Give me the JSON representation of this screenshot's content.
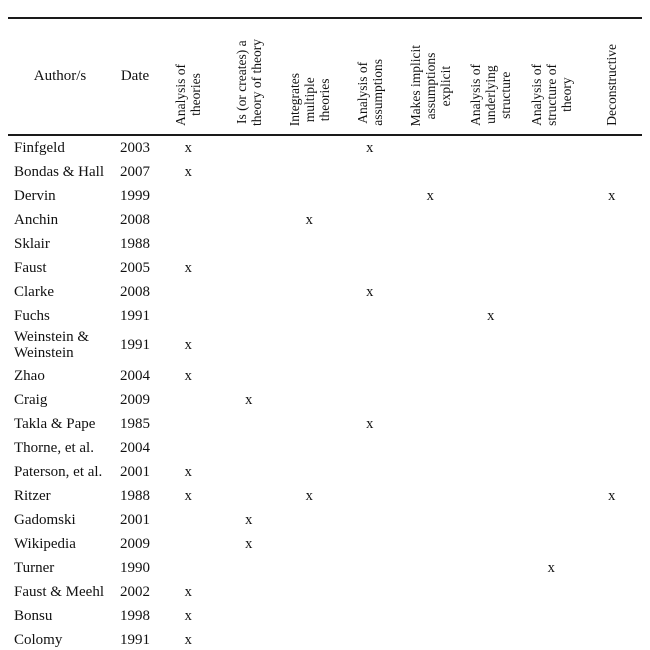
{
  "table": {
    "mark": "x",
    "header": {
      "author": "Author/s",
      "date": "Date",
      "criteria": [
        "Analysis of\ntheories",
        "Is (or creates) a\ntheory of theory",
        "Integrates\nmultiple\ntheories",
        "Analysis of\nassumptions",
        "Makes implicit\nassumptions\nexplicit",
        "Analysis of\nunderlying\nstructure",
        "Analysis of\nstructure of\ntheory",
        "Deconstructive"
      ]
    },
    "rows": [
      {
        "author": "Finfgeld",
        "date": "2003",
        "marks": [
          1,
          0,
          0,
          1,
          0,
          0,
          0,
          0
        ]
      },
      {
        "author": "Bondas & Hall",
        "date": "2007",
        "marks": [
          1,
          0,
          0,
          0,
          0,
          0,
          0,
          0
        ]
      },
      {
        "author": "Dervin",
        "date": "1999",
        "marks": [
          0,
          0,
          0,
          0,
          1,
          0,
          0,
          1
        ]
      },
      {
        "author": "Anchin",
        "date": "2008",
        "marks": [
          0,
          0,
          1,
          0,
          0,
          0,
          0,
          0
        ]
      },
      {
        "author": "Sklair",
        "date": "1988",
        "marks": [
          0,
          0,
          0,
          0,
          0,
          0,
          0,
          0
        ]
      },
      {
        "author": "Faust",
        "date": "2005",
        "marks": [
          1,
          0,
          0,
          0,
          0,
          0,
          0,
          0
        ]
      },
      {
        "author": "Clarke",
        "date": "2008",
        "marks": [
          0,
          0,
          0,
          1,
          0,
          0,
          0,
          0
        ]
      },
      {
        "author": "Fuchs",
        "date": "1991",
        "marks": [
          0,
          0,
          0,
          0,
          0,
          1,
          0,
          0
        ]
      },
      {
        "author": "Weinstein & Weinstein",
        "date": "1991",
        "marks": [
          1,
          0,
          0,
          0,
          0,
          0,
          0,
          0
        ],
        "tall": true
      },
      {
        "author": "Zhao",
        "date": "2004",
        "marks": [
          1,
          0,
          0,
          0,
          0,
          0,
          0,
          0
        ]
      },
      {
        "author": "Craig",
        "date": "2009",
        "marks": [
          0,
          1,
          0,
          0,
          0,
          0,
          0,
          0
        ]
      },
      {
        "author": "Takla & Pape",
        "date": "1985",
        "marks": [
          0,
          0,
          0,
          1,
          0,
          0,
          0,
          0
        ]
      },
      {
        "author": "Thorne, et al.",
        "date": "2004",
        "marks": [
          0,
          0,
          0,
          0,
          0,
          0,
          0,
          0
        ]
      },
      {
        "author": "Paterson, et al.",
        "date": "2001",
        "marks": [
          1,
          0,
          0,
          0,
          0,
          0,
          0,
          0
        ]
      },
      {
        "author": "Ritzer",
        "date": "1988",
        "marks": [
          1,
          0,
          1,
          0,
          0,
          0,
          0,
          1
        ]
      },
      {
        "author": "Gadomski",
        "date": "2001",
        "marks": [
          0,
          1,
          0,
          0,
          0,
          0,
          0,
          0
        ]
      },
      {
        "author": "Wikipedia",
        "date": "2009",
        "marks": [
          0,
          1,
          0,
          0,
          0,
          0,
          0,
          0
        ]
      },
      {
        "author": "Turner",
        "date": "1990",
        "marks": [
          0,
          0,
          0,
          0,
          0,
          0,
          1,
          0
        ]
      },
      {
        "author": "Faust & Meehl",
        "date": "2002",
        "marks": [
          1,
          0,
          0,
          0,
          0,
          0,
          0,
          0
        ]
      },
      {
        "author": "Bonsu",
        "date": "1998",
        "marks": [
          1,
          0,
          0,
          0,
          0,
          0,
          0,
          0
        ]
      },
      {
        "author": "Colomy",
        "date": "1991",
        "marks": [
          1,
          0,
          0,
          0,
          0,
          0,
          0,
          0
        ]
      }
    ]
  }
}
